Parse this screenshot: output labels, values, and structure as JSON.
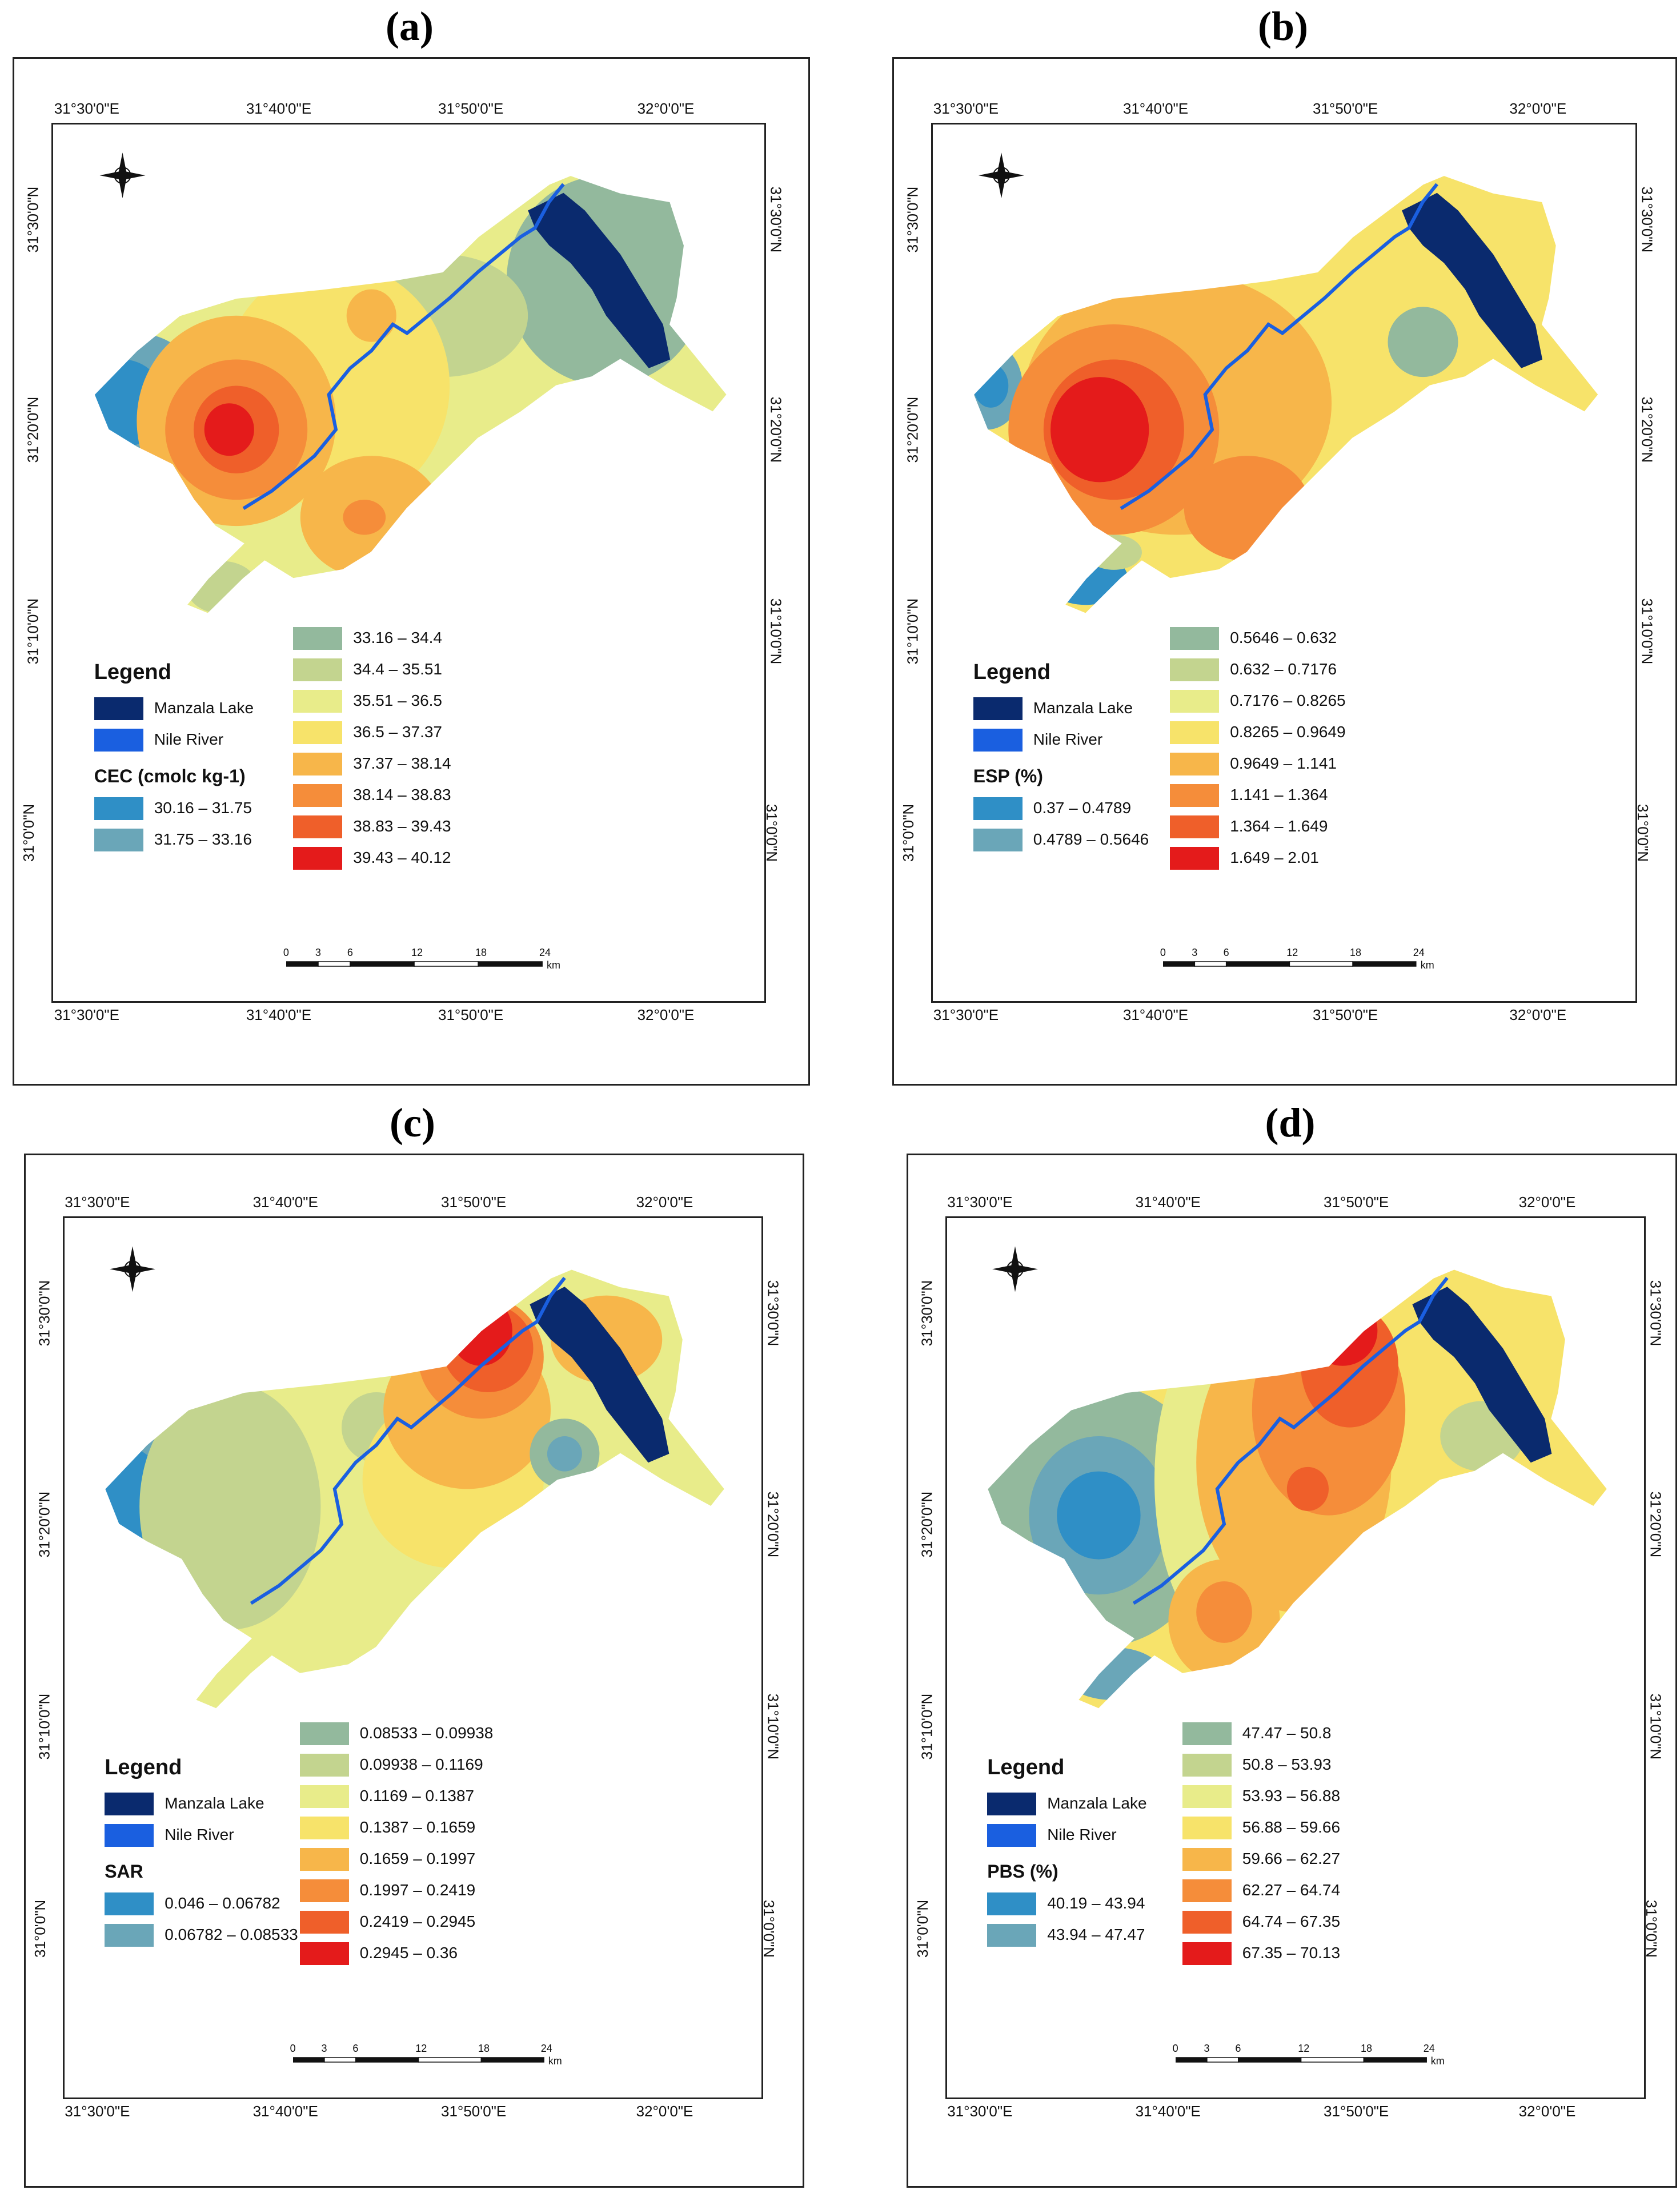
{
  "panels": [
    {
      "id": "a",
      "label": "(a)",
      "legend_title": "Legend",
      "lake_label": "Manzala Lake",
      "river_label": "Nile River",
      "variable": "CEC (cmolc kg-1)",
      "classes_left": [
        "30.16 – 31.75",
        "31.75 – 33.16"
      ],
      "classes_right": [
        "33.16 – 34.4",
        "34.4 – 35.51",
        "35.51 – 36.5",
        "36.5 – 37.37",
        "37.37 – 38.14",
        "38.14 – 38.83",
        "38.83 – 39.43",
        "39.43 – 40.12"
      ]
    },
    {
      "id": "b",
      "label": "(b)",
      "legend_title": "Legend",
      "lake_label": "Manzala Lake",
      "river_label": "Nile River",
      "variable": "ESP (%)",
      "classes_left": [
        "0.37 – 0.4789",
        "0.4789 – 0.5646"
      ],
      "classes_right": [
        "0.5646 – 0.632",
        "0.632 – 0.7176",
        "0.7176 – 0.8265",
        "0.8265 – 0.9649",
        "0.9649 – 1.141",
        "1.141 – 1.364",
        "1.364 – 1.649",
        "1.649 – 2.01"
      ]
    },
    {
      "id": "c",
      "label": "(c)",
      "legend_title": "Legend",
      "lake_label": "Manzala Lake",
      "river_label": "Nile River",
      "variable": "SAR",
      "classes_left": [
        "0.046 – 0.06782",
        "0.06782 – 0.08533"
      ],
      "classes_right": [
        "0.08533 – 0.09938",
        "0.09938 – 0.1169",
        "0.1169 – 0.1387",
        "0.1387 – 0.1659",
        "0.1659 – 0.1997",
        "0.1997 – 0.2419",
        "0.2419 – 0.2945",
        "0.2945 – 0.36"
      ]
    },
    {
      "id": "d",
      "label": "(d)",
      "legend_title": "Legend",
      "lake_label": "Manzala Lake",
      "river_label": "Nile River",
      "variable": "PBS (%)",
      "classes_left": [
        "40.19 – 43.94",
        "43.94 – 47.47"
      ],
      "classes_right": [
        "47.47 – 50.8",
        "50.8 – 53.93",
        "53.93 – 56.88",
        "56.88 – 59.66",
        "59.66 – 62.27",
        "62.27 – 64.74",
        "64.74 – 67.35",
        "67.35 – 70.13"
      ]
    }
  ],
  "coords": {
    "top": [
      "31°30'0\"E",
      "31°40'0\"E",
      "31°50'0\"E",
      "32°0'0\"E"
    ],
    "bottom": [
      "31°30'0\"E",
      "31°40'0\"E",
      "31°50'0\"E",
      "32°0'0\"E"
    ],
    "side": [
      "31°30'0\"N",
      "31°20'0\"N",
      "31°10'0\"N",
      "31°0'0\"N"
    ]
  },
  "scale": {
    "ticks": [
      "0",
      "3",
      "6",
      "12",
      "18",
      "24"
    ],
    "unit": "km"
  },
  "colors": {
    "left": [
      "#2f8fc6",
      "#6aa6b8"
    ],
    "right": [
      "#93b99d",
      "#c3d48f",
      "#e8ec8a",
      "#f7e36a",
      "#f7b64a",
      "#f58d3a",
      "#ef5f2a",
      "#e41b1b"
    ],
    "lake": "#0a2a6e",
    "river": "#1a5fe0"
  }
}
